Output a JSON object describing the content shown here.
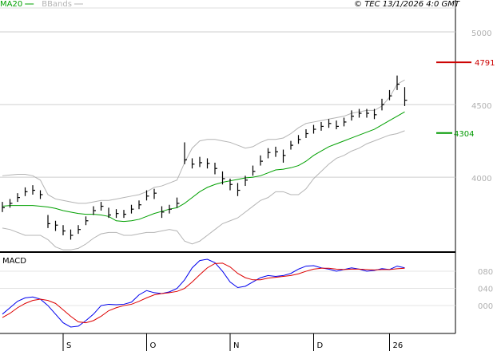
{
  "chart_data": {
    "type": "ohlc",
    "source": "© TEC 13/1/2026 4:0 GMT",
    "color": "#000000",
    "categories": [
      null,
      null,
      null,
      null,
      null,
      null,
      null,
      null,
      "S",
      null,
      null,
      null,
      null,
      null,
      null,
      null,
      null,
      null,
      null,
      "O",
      null,
      null,
      null,
      null,
      null,
      null,
      null,
      null,
      null,
      null,
      "N",
      null,
      null,
      null,
      null,
      null,
      null,
      null,
      null,
      null,
      null,
      "D",
      null,
      null,
      null,
      null,
      null,
      null,
      null,
      null,
      null,
      "26",
      null,
      null
    ],
    "close": [
      3790,
      3820,
      3860,
      3900,
      3910,
      3880,
      3680,
      3670,
      3630,
      3600,
      3640,
      3700,
      3770,
      3800,
      3740,
      3750,
      3745,
      3780,
      3810,
      3870,
      3890,
      3760,
      3780,
      3820,
      4120,
      4090,
      4100,
      4095,
      4060,
      3990,
      3950,
      3910,
      3980,
      4040,
      4110,
      4170,
      4175,
      4150,
      4220,
      4260,
      4300,
      4330,
      4350,
      4370,
      4350,
      4380,
      4420,
      4440,
      4440,
      4430,
      4500,
      4560,
      4640,
      4530
    ],
    "high": [
      3830,
      3850,
      3890,
      3930,
      3945,
      3910,
      3740,
      3700,
      3670,
      3640,
      3670,
      3730,
      3800,
      3830,
      3790,
      3780,
      3775,
      3810,
      3840,
      3910,
      3920,
      3800,
      3810,
      3860,
      4240,
      4130,
      4140,
      4130,
      4100,
      4040,
      3990,
      3960,
      4010,
      4080,
      4150,
      4200,
      4210,
      4190,
      4250,
      4290,
      4330,
      4360,
      4380,
      4400,
      4390,
      4410,
      4460,
      4470,
      4470,
      4470,
      4540,
      4600,
      4700,
      4620
    ],
    "low": [
      3760,
      3790,
      3830,
      3870,
      3880,
      3850,
      3650,
      3630,
      3600,
      3570,
      3610,
      3670,
      3740,
      3770,
      3720,
      3720,
      3720,
      3750,
      3780,
      3840,
      3850,
      3720,
      3750,
      3790,
      4090,
      4060,
      4070,
      4060,
      4020,
      3950,
      3910,
      3870,
      3940,
      4010,
      4080,
      4130,
      4140,
      4100,
      4190,
      4230,
      4270,
      4300,
      4320,
      4340,
      4330,
      4350,
      4390,
      4410,
      4410,
      4400,
      4460,
      4530,
      4600,
      4490
    ],
    "series": [
      {
        "name": "MA20",
        "color": "#00a000",
        "values": [
          3800,
          3805,
          3805,
          3805,
          3805,
          3800,
          3795,
          3785,
          3770,
          3760,
          3750,
          3745,
          3745,
          3740,
          3730,
          3700,
          3695,
          3700,
          3710,
          3730,
          3750,
          3765,
          3780,
          3790,
          3820,
          3860,
          3900,
          3930,
          3950,
          3965,
          3975,
          3985,
          3995,
          4000,
          4010,
          4030,
          4050,
          4055,
          4065,
          4080,
          4110,
          4150,
          4180,
          4210,
          4230,
          4250,
          4270,
          4290,
          4310,
          4330,
          4360,
          4390,
          4420,
          4450
        ]
      },
      {
        "name": "BBands",
        "color": "#b4b4b4",
        "upper": [
          4010,
          4015,
          4020,
          4020,
          4010,
          3980,
          3880,
          3850,
          3840,
          3830,
          3820,
          3820,
          3830,
          3840,
          3840,
          3850,
          3860,
          3870,
          3880,
          3900,
          3930,
          3940,
          3960,
          3980,
          4100,
          4200,
          4250,
          4260,
          4260,
          4250,
          4240,
          4220,
          4200,
          4210,
          4240,
          4260,
          4260,
          4270,
          4300,
          4340,
          4370,
          4380,
          4390,
          4400,
          4410,
          4420,
          4440,
          4450,
          4460,
          4460,
          4490,
          4550,
          4640,
          4670
        ],
        "lower": [
          3650,
          3640,
          3620,
          3600,
          3600,
          3600,
          3570,
          3520,
          3500,
          3500,
          3510,
          3540,
          3580,
          3610,
          3620,
          3620,
          3600,
          3600,
          3610,
          3620,
          3620,
          3630,
          3640,
          3630,
          3560,
          3540,
          3560,
          3600,
          3640,
          3680,
          3700,
          3720,
          3760,
          3800,
          3840,
          3860,
          3900,
          3900,
          3880,
          3880,
          3920,
          3990,
          4040,
          4090,
          4130,
          4150,
          4180,
          4200,
          4230,
          4250,
          4270,
          4290,
          4300,
          4320
        ]
      }
    ],
    "ylim": [
      3490,
      5165
    ],
    "yticks": [
      4000,
      4500,
      5000
    ],
    "grid": true,
    "levels": [
      {
        "value": 4791,
        "color": "#cc0000"
      },
      {
        "value": 4304,
        "color": "#009900"
      }
    ],
    "macd": {
      "title": "MACD",
      "ylim": [
        -65,
        121
      ],
      "grid": true,
      "yticks": [
        {
          "value": 80,
          "label": "080"
        },
        {
          "value": 40,
          "label": "040"
        },
        {
          "value": 0,
          "label": "000"
        }
      ],
      "series": [
        {
          "color": "#0000ee",
          "values": [
            -20,
            -5,
            10,
            18,
            20,
            15,
            0,
            -20,
            -40,
            -50,
            -48,
            -35,
            -20,
            0,
            3,
            2,
            3,
            8,
            25,
            35,
            30,
            28,
            32,
            40,
            60,
            88,
            105,
            108,
            100,
            80,
            55,
            42,
            45,
            55,
            65,
            70,
            68,
            70,
            75,
            85,
            92,
            93,
            88,
            85,
            80,
            84,
            88,
            85,
            80,
            82,
            86,
            84,
            92,
            88
          ]
        },
        {
          "color": "#dd0000",
          "values": [
            -28,
            -18,
            -5,
            5,
            12,
            15,
            12,
            5,
            -10,
            -25,
            -38,
            -40,
            -35,
            -25,
            -12,
            -5,
            0,
            3,
            10,
            18,
            25,
            28,
            30,
            33,
            40,
            55,
            72,
            88,
            98,
            99,
            90,
            75,
            65,
            60,
            60,
            64,
            66,
            68,
            70,
            74,
            80,
            85,
            87,
            87,
            85,
            84,
            85,
            85,
            84,
            83,
            84,
            84,
            86,
            87
          ]
        }
      ]
    }
  }
}
